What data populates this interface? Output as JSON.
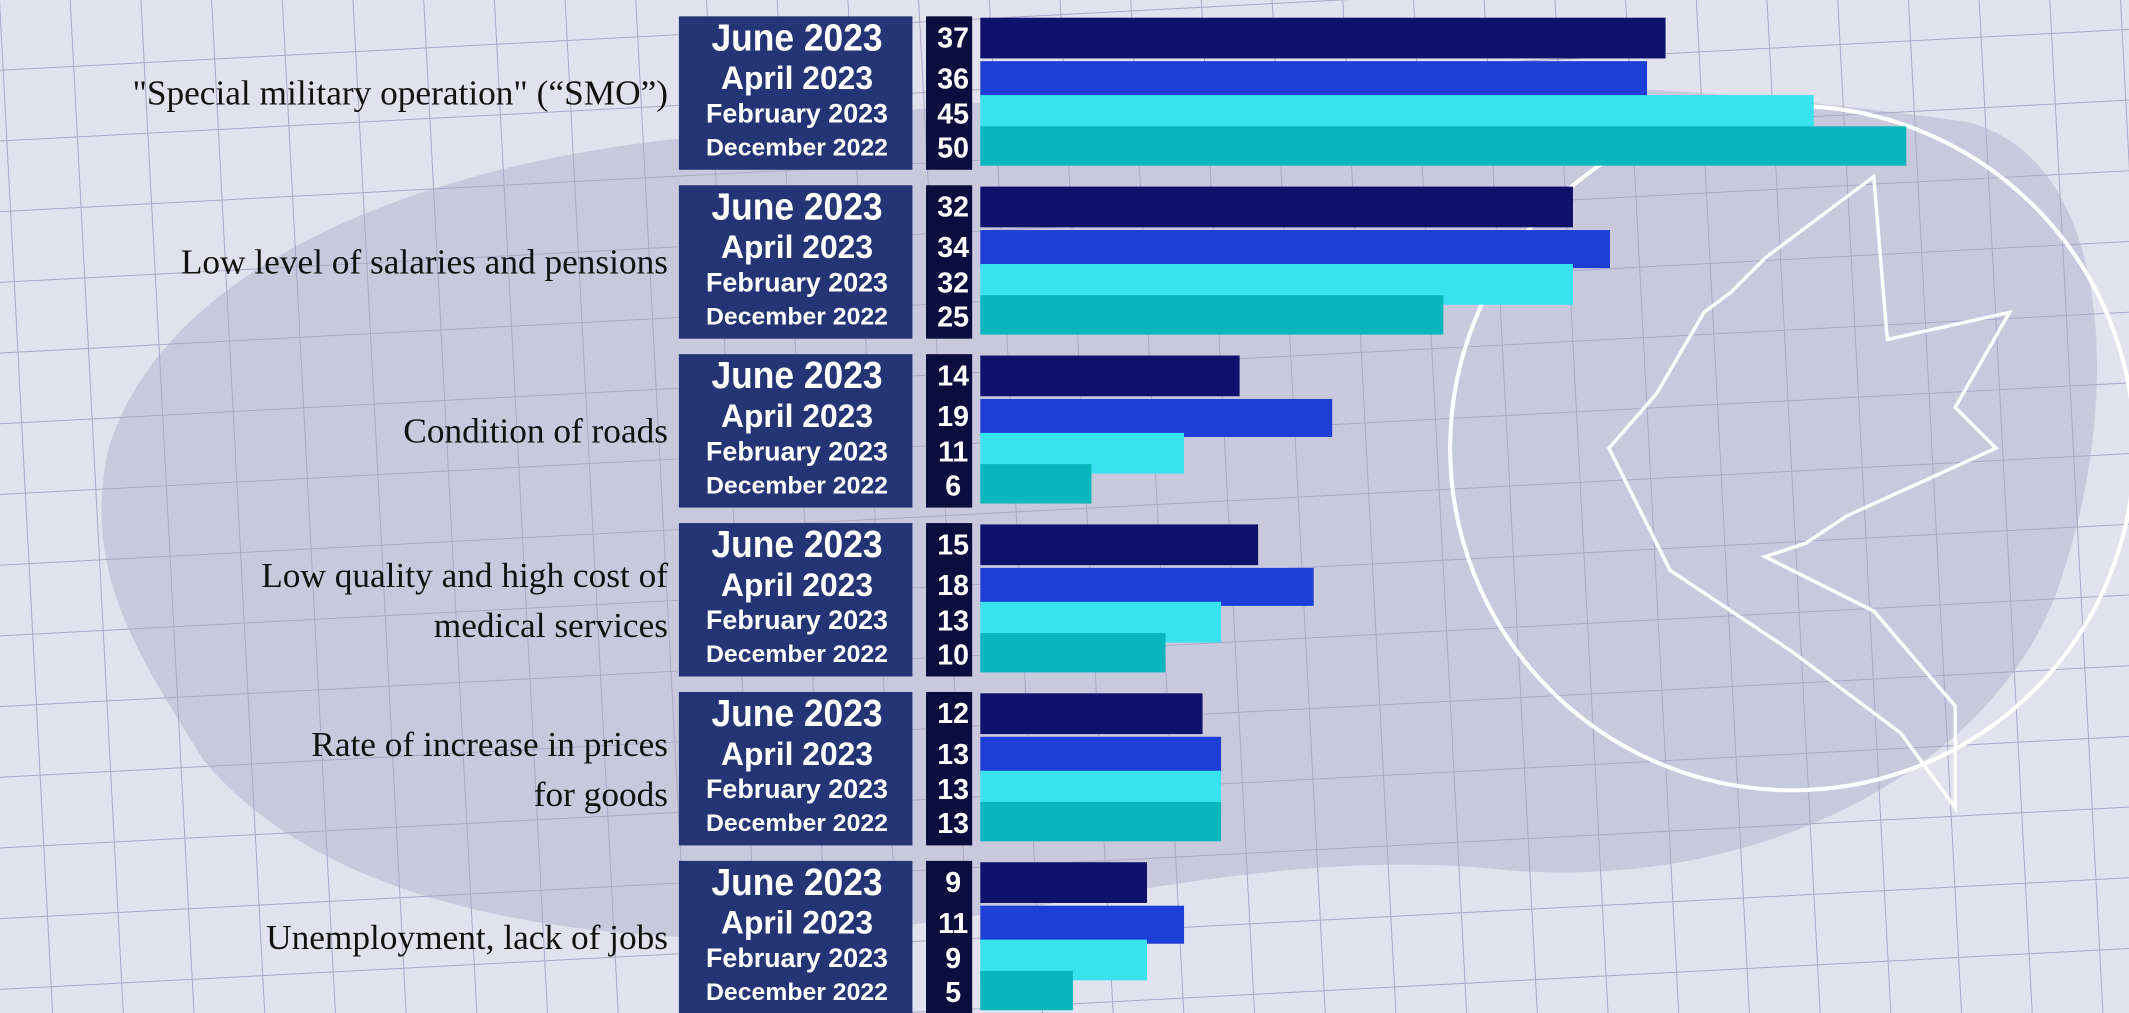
{
  "chart_data": {
    "type": "bar",
    "orientation": "horizontal",
    "categories": [
      "\"Special military operation\" (“SMO”)",
      "Low level of salaries and pensions",
      "Condition of roads",
      "Low quality and high cost of\nmedical services",
      "Rate of increase in prices\nfor goods",
      "Unemployment, lack of jobs"
    ],
    "series": [
      {
        "name": "June 2023",
        "color": "#10116b",
        "values": [
          37,
          32,
          14,
          15,
          12,
          9
        ]
      },
      {
        "name": "April 2023",
        "color": "#1d3fd8",
        "values": [
          36,
          34,
          19,
          18,
          13,
          11
        ]
      },
      {
        "name": "February 2023",
        "color": "#38e2ee",
        "values": [
          45,
          32,
          11,
          13,
          13,
          9
        ]
      },
      {
        "name": "December 2022",
        "color": "#08b7bd",
        "values": [
          50,
          25,
          6,
          10,
          13,
          5
        ]
      }
    ]
  }
}
